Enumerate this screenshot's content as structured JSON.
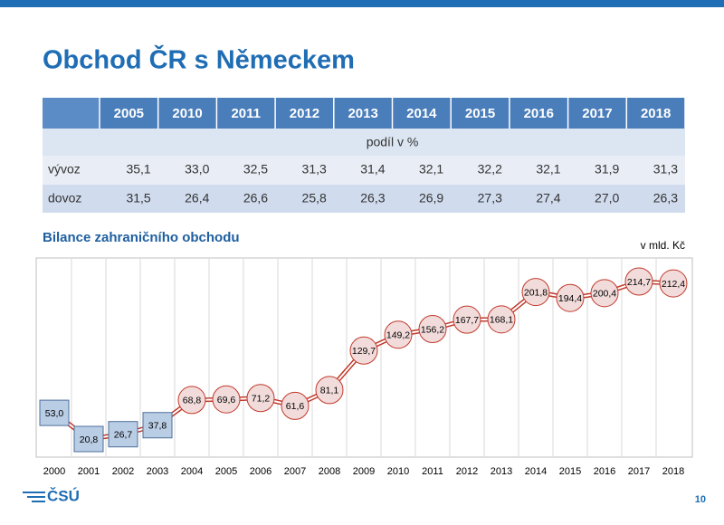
{
  "header": {
    "title": "Obchod ČR s Německem"
  },
  "table": {
    "columns": [
      "2005",
      "2010",
      "2011",
      "2012",
      "2013",
      "2014",
      "2015",
      "2016",
      "2017",
      "2018"
    ],
    "subheader": "podíl v %",
    "rows": [
      [
        "vývoz",
        "35,1",
        "33,0",
        "32,5",
        "31,3",
        "31,4",
        "32,1",
        "32,2",
        "32,1",
        "31,9",
        "31,3"
      ],
      [
        "dovoz",
        "31,5",
        "26,4",
        "26,6",
        "25,8",
        "26,3",
        "26,9",
        "27,3",
        "27,4",
        "27,0",
        "26,3"
      ]
    ]
  },
  "chart_data": {
    "type": "line",
    "title": "Bilance zahraničního obchodu",
    "unit": "v mld. Kč",
    "categories": [
      "2000",
      "2001",
      "2002",
      "2003",
      "2004",
      "2005",
      "2006",
      "2007",
      "2008",
      "2009",
      "2010",
      "2011",
      "2012",
      "2013",
      "2014",
      "2015",
      "2016",
      "2017",
      "2018"
    ],
    "values": [
      53.0,
      20.8,
      26.7,
      37.8,
      68.8,
      69.6,
      71.2,
      61.6,
      81.1,
      129.7,
      149.2,
      156.2,
      167.7,
      168.1,
      201.8,
      194.4,
      200.4,
      214.7,
      212.4
    ],
    "value_labels": [
      "53,0",
      "20,8",
      "26,7",
      "37,8",
      "68,8",
      "69,6",
      "71,2",
      "61,6",
      "81,1",
      "129,7",
      "149,2",
      "156,2",
      "167,7",
      "168,1",
      "201,8",
      "194,4",
      "200,4",
      "214,7",
      "212,4"
    ],
    "markers": [
      "square",
      "square",
      "square",
      "square",
      "circle",
      "circle",
      "circle",
      "circle",
      "circle",
      "circle",
      "circle",
      "circle",
      "circle",
      "circle",
      "circle",
      "circle",
      "circle",
      "circle",
      "circle"
    ],
    "marker_styles": {
      "square": {
        "fill": "#b9cde5",
        "stroke": "#4f6f9a"
      },
      "circle": {
        "fill": "#f2dcdb",
        "stroke": "#c0392b"
      }
    },
    "color": "#c0392b"
  },
  "footer": {
    "logo": "ČSÚ",
    "page": "10"
  }
}
